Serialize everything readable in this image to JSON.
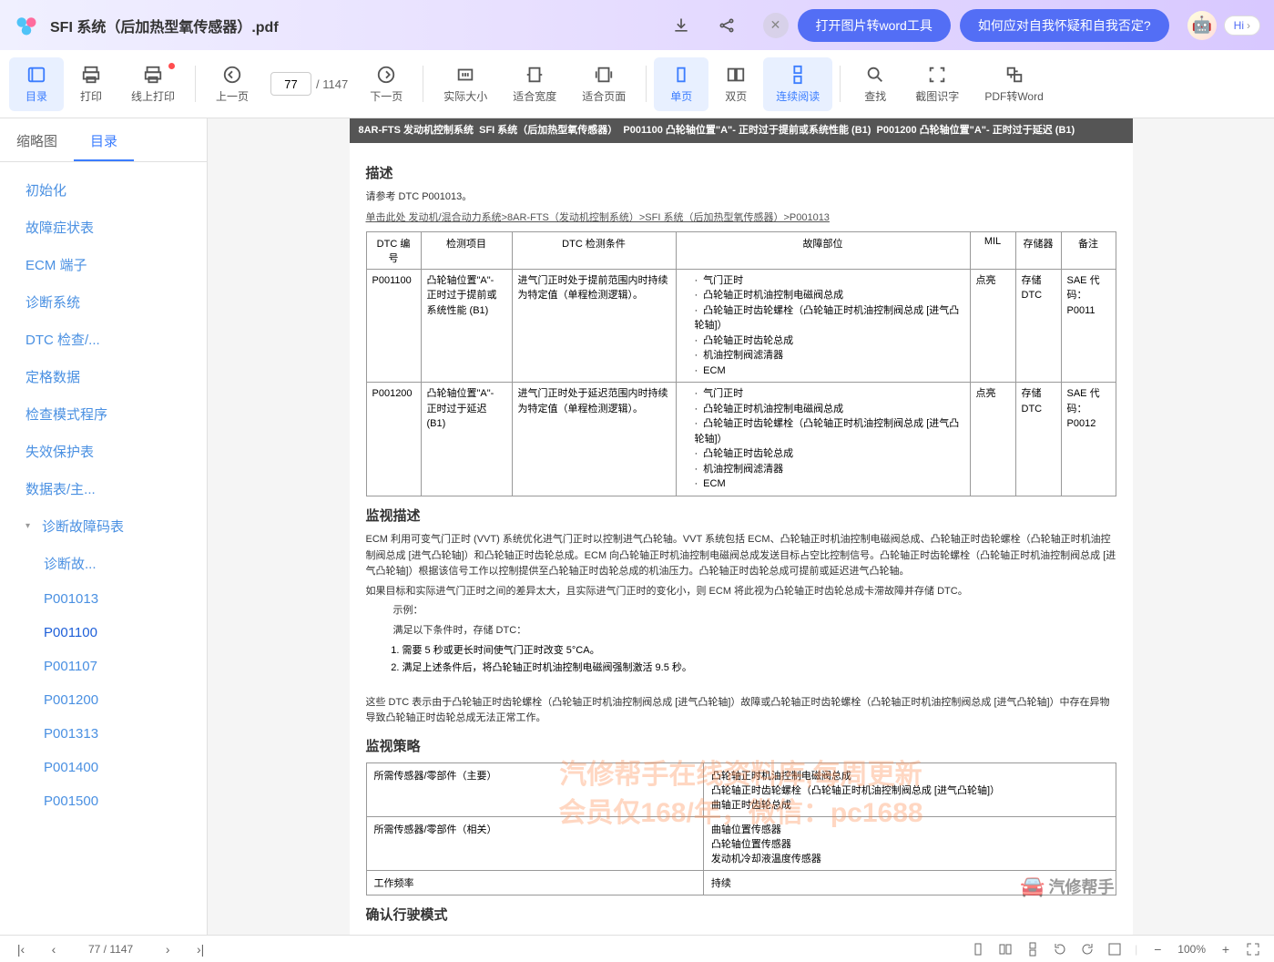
{
  "titlebar": {
    "filename": "SFI 系统（后加热型氧传感器）.pdf",
    "pill1": "打开图片转word工具",
    "pill2": "如何应对自我怀疑和自我否定?",
    "hi": "Hi"
  },
  "toolbar": {
    "catalog": "目录",
    "print": "打印",
    "onlinePrint": "线上打印",
    "prevPage": "上一页",
    "currentPage": "77",
    "totalPages": "/ 1147",
    "nextPage": "下一页",
    "actualSize": "实际大小",
    "fitWidth": "适合宽度",
    "fitPage": "适合页面",
    "singlePage": "单页",
    "doublePage": "双页",
    "continuous": "连续阅读",
    "find": "查找",
    "screenshot": "截图识字",
    "pdf2word": "PDF转Word"
  },
  "sidebar": {
    "tab1": "缩略图",
    "tab2": "目录",
    "items": [
      {
        "text": "初始化",
        "lvl": 0
      },
      {
        "text": "故障症状表",
        "lvl": 0
      },
      {
        "text": "ECM 端子",
        "lvl": 0
      },
      {
        "text": "诊断系统",
        "lvl": 0
      },
      {
        "text": "DTC 检查/...",
        "lvl": 0
      },
      {
        "text": "定格数据",
        "lvl": 0
      },
      {
        "text": "检查模式程序",
        "lvl": 0
      },
      {
        "text": "失效保护表",
        "lvl": 0
      },
      {
        "text": "数据表/主...",
        "lvl": 0
      },
      {
        "text": "诊断故障码表",
        "lvl": 0,
        "caret": true
      },
      {
        "text": "诊断故...",
        "lvl": 1
      },
      {
        "text": "P001013",
        "lvl": 1
      },
      {
        "text": "P001100",
        "lvl": 1,
        "selected": true
      },
      {
        "text": "P001107",
        "lvl": 1
      },
      {
        "text": "P001200",
        "lvl": 1
      },
      {
        "text": "P001313",
        "lvl": 1
      },
      {
        "text": "P001400",
        "lvl": 1
      },
      {
        "text": "P001500",
        "lvl": 1
      }
    ]
  },
  "doc": {
    "headerBar": "8AR-FTS 发动机控制系统  SFI 系统（后加热型氧传感器）  P001100 凸轮轴位置\"A\"- 正时过于提前或系统性能 (B1)  P001200 凸轮轴位置\"A\"- 正时过于延迟 (B1)",
    "h1": "描述",
    "ref": "请参考 DTC P001013。",
    "link": "单击此处 发动机/混合动力系统>8AR-FTS（发动机控制系统）>SFI 系统（后加热型氧传感器）>P001013",
    "tableHeaders": [
      "DTC 编号",
      "检测项目",
      "DTC 检测条件",
      "故障部位",
      "MIL",
      "存储器",
      "备注"
    ],
    "rows": [
      {
        "code": "P001100",
        "item": "凸轮轴位置\"A\"- 正时过于提前或系统性能 (B1)",
        "cond": "进气门正时处于提前范围内时持续为特定值（单程检测逻辑）。",
        "faults": [
          "气门正时",
          "凸轮轴正时机油控制电磁阀总成",
          "凸轮轴正时齿轮螺栓（凸轮轴正时机油控制阀总成 [进气凸轮轴]）",
          "凸轮轴正时齿轮总成",
          "机油控制阀滤清器",
          "ECM"
        ],
        "mil": "点亮",
        "store": "存储 DTC",
        "note": "SAE 代码：P0011"
      },
      {
        "code": "P001200",
        "item": "凸轮轴位置\"A\"- 正时过于延迟 (B1)",
        "cond": "进气门正时处于延迟范围内时持续为特定值（单程检测逻辑）。",
        "faults": [
          "气门正时",
          "凸轮轴正时机油控制电磁阀总成",
          "凸轮轴正时齿轮螺栓（凸轮轴正时机油控制阀总成 [进气凸轮轴]）",
          "凸轮轴正时齿轮总成",
          "机油控制阀滤清器",
          "ECM"
        ],
        "mil": "点亮",
        "store": "存储 DTC",
        "note": "SAE 代码：P0012"
      }
    ],
    "h2": "监视描述",
    "monDesc": "ECM 利用可变气门正时 (VVT) 系统优化进气门正时以控制进气凸轮轴。VVT 系统包括 ECM、凸轮轴正时机油控制电磁阀总成、凸轮轴正时齿轮螺栓（凸轮轴正时机油控制阀总成 [进气凸轮轴]）和凸轮轴正时齿轮总成。ECM 向凸轮轴正时机油控制电磁阀总成发送目标占空比控制信号。凸轮轴正时齿轮螺栓（凸轮轴正时机油控制阀总成 [进气凸轮轴]）根据该信号工作以控制提供至凸轮轴正时齿轮总成的机油压力。凸轮轴正时齿轮总成可提前或延迟进气凸轮轴。",
    "monDesc2": "如果目标和实际进气门正时之间的差异太大，且实际进气门正时的变化小，则 ECM 将此视为凸轮轴正时齿轮总成卡滞故障并存储 DTC。",
    "exHead": "示例：",
    "exCond": "满足以下条件时，存储 DTC：",
    "ex1": "需要 5 秒或更长时间使气门正时改变 5°CA。",
    "ex2": "满足上述条件后，将凸轮轴正时机油控制电磁阀强制激活 9.5 秒。",
    "dtcNote": "这些 DTC 表示由于凸轮轴正时齿轮螺栓（凸轮轴正时机油控制阀总成 [进气凸轮轴]）故障或凸轮轴正时齿轮螺栓（凸轮轴正时机油控制阀总成 [进气凸轮轴]）中存在异物导致凸轮轴正时齿轮总成无法正常工作。",
    "h3": "监视策略",
    "sensorRows": [
      {
        "k": "所需传感器/零部件（主要）",
        "v": "凸轮轴正时机油控制电磁阀总成\n凸轮轴正时齿轮螺栓（凸轮轴正时机油控制阀总成 [进气凸轮轴]）\n曲轴正时齿轮总成"
      },
      {
        "k": "所需传感器/零部件（相关）",
        "v": "曲轴位置传感器\n凸轮轴位置传感器\n发动机冷却液温度传感器"
      },
      {
        "k": "工作频率",
        "v": "持续"
      }
    ],
    "h4": "确认行驶模式",
    "watermark1": "汽修帮手在线资料库,每周更新",
    "watermark2": "会员仅168/年，微信：pc1688"
  },
  "statusbar": {
    "page": "77 / 1147",
    "zoom": "100%"
  }
}
